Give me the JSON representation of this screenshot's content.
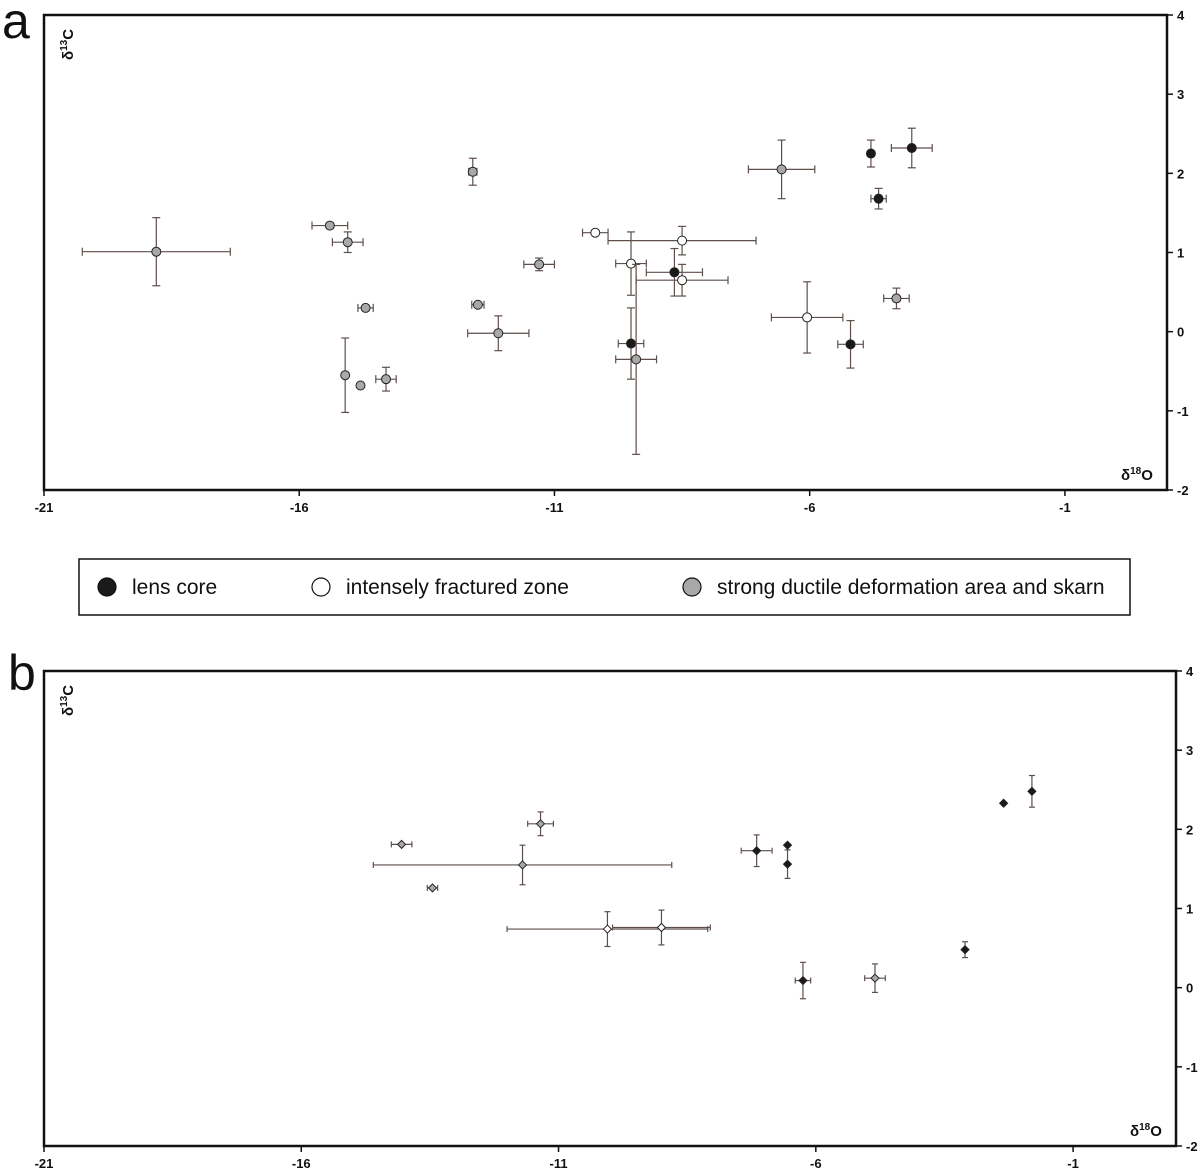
{
  "colors": {
    "lens_core": "#1a1a1a",
    "intensely_fractured": "#ffffff",
    "ductile_skarn": "#a8a8a8",
    "error_bar": "#5e4f4a",
    "frame": "#111111"
  },
  "legend": {
    "items": [
      {
        "key": "lens_core",
        "label": "lens core"
      },
      {
        "key": "intensely_fractured",
        "label": "intensely fractured zone"
      },
      {
        "key": "ductile_skarn",
        "label": "strong ductile deformation area and skarn"
      }
    ]
  },
  "chart_data": [
    {
      "panel": "a",
      "type": "scatter",
      "marker": "circle",
      "xlabel_main": "δ",
      "xlabel_sup": "18",
      "xlabel_end": "O",
      "ylabel_main": "δ",
      "ylabel_sup": "13",
      "ylabel_end": "C",
      "xlim": [
        -21,
        1
      ],
      "ylim": [
        -2,
        4
      ],
      "x_ticks": [
        -21,
        -16,
        -11,
        -6,
        -1
      ],
      "y_ticks": [
        -2,
        -1,
        0,
        1,
        2,
        3,
        4
      ],
      "y_axis_side": "right",
      "series": [
        {
          "group": "lens_core",
          "points": [
            {
              "x": -4.8,
              "y": 2.25,
              "xerr": 0.0,
              "yerr": 0.17
            },
            {
              "x": -4.0,
              "y": 2.32,
              "xerr": 0.4,
              "yerr": 0.25
            },
            {
              "x": -4.65,
              "y": 1.68,
              "xerr": 0.15,
              "yerr": 0.13
            },
            {
              "x": -8.65,
              "y": 0.75,
              "xerr": 0.55,
              "yerr": 0.3
            },
            {
              "x": -9.5,
              "y": -0.15,
              "xerr": 0.25,
              "yerr": 0.45
            },
            {
              "x": -5.2,
              "y": -0.16,
              "xerr": 0.25,
              "yerr": 0.3
            }
          ]
        },
        {
          "group": "intensely_fractured",
          "points": [
            {
              "x": -10.2,
              "y": 1.25,
              "xerr": 0.25,
              "yerr": 0.0
            },
            {
              "x": -8.5,
              "y": 1.15,
              "xerr": 1.45,
              "yerr": 0.18
            },
            {
              "x": -9.5,
              "y": 0.86,
              "xerr": 0.3,
              "yerr": 0.4
            },
            {
              "x": -8.5,
              "y": 0.65,
              "xerr": 0.9,
              "yerr": 0.2
            },
            {
              "x": -6.05,
              "y": 0.18,
              "xerr": 0.7,
              "yerr": 0.45
            }
          ]
        },
        {
          "group": "ductile_skarn",
          "points": [
            {
              "x": -18.8,
              "y": 1.01,
              "xerr": 1.45,
              "yerr": 0.43
            },
            {
              "x": -15.4,
              "y": 1.34,
              "xerr": 0.35,
              "yerr": 0.0
            },
            {
              "x": -15.05,
              "y": 1.13,
              "xerr": 0.3,
              "yerr": 0.13
            },
            {
              "x": -14.7,
              "y": 0.3,
              "xerr": 0.15,
              "yerr": 0.0
            },
            {
              "x": -15.1,
              "y": -0.55,
              "xerr": 0.0,
              "yerr": 0.47
            },
            {
              "x": -14.8,
              "y": -0.68,
              "xerr": 0.0,
              "yerr": 0.0
            },
            {
              "x": -14.3,
              "y": -0.6,
              "xerr": 0.2,
              "yerr": 0.15
            },
            {
              "x": -12.6,
              "y": 2.02,
              "xerr": 0.08,
              "yerr": 0.17
            },
            {
              "x": -12.5,
              "y": 0.34,
              "xerr": 0.12,
              "yerr": 0.0
            },
            {
              "x": -12.1,
              "y": -0.02,
              "xerr": 0.6,
              "yerr": 0.22
            },
            {
              "x": -11.3,
              "y": 0.85,
              "xerr": 0.3,
              "yerr": 0.08
            },
            {
              "x": -9.4,
              "y": -0.35,
              "xerr": 0.4,
              "yerr": 1.2
            },
            {
              "x": -6.55,
              "y": 2.05,
              "xerr": 0.65,
              "yerr": 0.37
            },
            {
              "x": -4.3,
              "y": 0.42,
              "xerr": 0.25,
              "yerr": 0.13
            }
          ]
        }
      ]
    },
    {
      "panel": "b",
      "type": "scatter",
      "marker": "diamond",
      "xlabel_main": "δ",
      "xlabel_sup": "18",
      "xlabel_end": "O",
      "ylabel_main": "δ",
      "ylabel_sup": "13",
      "ylabel_end": "C",
      "xlim": [
        -21,
        1
      ],
      "ylim": [
        -2,
        4
      ],
      "x_ticks": [
        -21,
        -16,
        -11,
        -6,
        -1
      ],
      "y_ticks": [
        -2,
        -1,
        0,
        1,
        2,
        3,
        4
      ],
      "y_axis_side": "right",
      "series": [
        {
          "group": "lens_core",
          "points": [
            {
              "x": -7.15,
              "y": 1.73,
              "xerr": 0.3,
              "yerr": 0.2
            },
            {
              "x": -6.55,
              "y": 1.8,
              "xerr": 0.0,
              "yerr": 0.0
            },
            {
              "x": -6.55,
              "y": 1.56,
              "xerr": 0.0,
              "yerr": 0.18
            },
            {
              "x": -6.25,
              "y": 0.09,
              "xerr": 0.15,
              "yerr": 0.23
            },
            {
              "x": -3.1,
              "y": 0.48,
              "xerr": 0.0,
              "yerr": 0.1
            },
            {
              "x": -2.35,
              "y": 2.33,
              "xerr": 0.0,
              "yerr": 0.0
            },
            {
              "x": -1.8,
              "y": 2.48,
              "xerr": 0.0,
              "yerr": 0.2
            }
          ]
        },
        {
          "group": "intensely_fractured",
          "points": [
            {
              "x": -10.05,
              "y": 0.74,
              "xerr": 1.95,
              "yerr": 0.22
            },
            {
              "x": -9.0,
              "y": 0.76,
              "xerr": 0.95,
              "yerr": 0.22
            }
          ]
        },
        {
          "group": "ductile_skarn",
          "points": [
            {
              "x": -14.05,
              "y": 1.81,
              "xerr": 0.2,
              "yerr": 0.0
            },
            {
              "x": -13.45,
              "y": 1.26,
              "xerr": 0.1,
              "yerr": 0.0
            },
            {
              "x": -11.7,
              "y": 1.55,
              "xerr": 2.9,
              "yerr": 0.25
            },
            {
              "x": -11.35,
              "y": 2.07,
              "xerr": 0.25,
              "yerr": 0.15
            },
            {
              "x": -4.85,
              "y": 0.12,
              "xerr": 0.2,
              "yerr": 0.18
            }
          ]
        }
      ]
    }
  ]
}
